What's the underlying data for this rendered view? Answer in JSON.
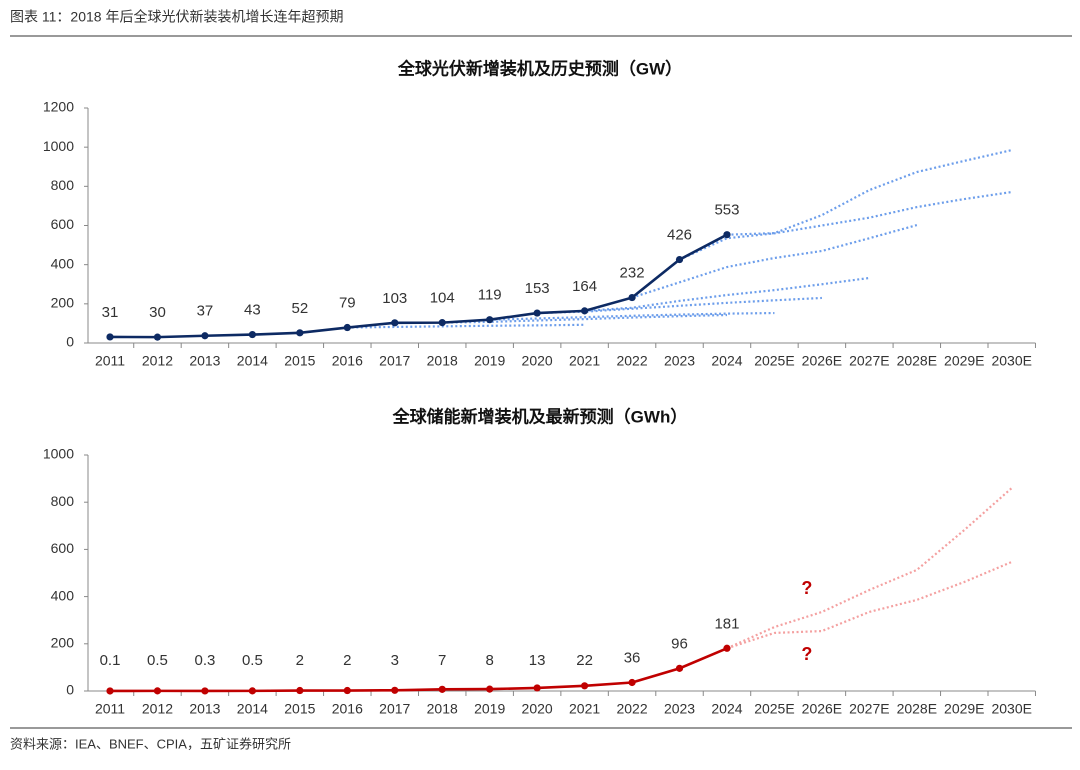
{
  "header": "图表 11：2018 年后全球光伏新装装机增长连年超预期",
  "source": "资料来源：IEA、BNEF、CPIA，五矿证券研究所",
  "chart_data": [
    {
      "type": "line",
      "title": "全球光伏新增装机及历史预测（GW）",
      "categories": [
        "2011",
        "2012",
        "2013",
        "2014",
        "2015",
        "2016",
        "2017",
        "2018",
        "2019",
        "2020",
        "2021",
        "2022",
        "2023",
        "2024",
        "2025E",
        "2026E",
        "2027E",
        "2028E",
        "2029E",
        "2030E"
      ],
      "ylim": [
        0,
        1200
      ],
      "yticks": [
        0,
        200,
        400,
        600,
        800,
        1000,
        1200
      ],
      "series": [
        {
          "color": "#6d9eeb",
          "style": "dotted",
          "values": [
            null,
            null,
            null,
            null,
            null,
            79,
            82,
            85,
            88,
            90,
            93,
            null,
            null,
            null,
            null,
            null,
            null,
            null,
            null,
            null
          ]
        },
        {
          "color": "#6d9eeb",
          "style": "dotted",
          "values": [
            null,
            null,
            null,
            null,
            null,
            null,
            null,
            104,
            108,
            115,
            122,
            130,
            137,
            143,
            null,
            null,
            null,
            null,
            null,
            null
          ]
        },
        {
          "color": "#6d9eeb",
          "style": "dotted",
          "values": [
            null,
            null,
            null,
            null,
            null,
            null,
            null,
            null,
            119,
            125,
            132,
            139,
            145,
            150,
            153,
            null,
            null,
            null,
            null,
            null
          ]
        },
        {
          "color": "#6d9eeb",
          "style": "dotted",
          "values": [
            null,
            null,
            null,
            null,
            null,
            null,
            null,
            null,
            null,
            153,
            160,
            175,
            190,
            205,
            218,
            230,
            null,
            null,
            null,
            null
          ]
        },
        {
          "color": "#6d9eeb",
          "style": "dotted",
          "values": [
            null,
            null,
            null,
            null,
            null,
            null,
            null,
            null,
            null,
            null,
            164,
            180,
            215,
            245,
            270,
            300,
            332,
            null,
            null,
            null
          ]
        },
        {
          "color": "#6d9eeb",
          "style": "dotted",
          "values": [
            null,
            null,
            null,
            null,
            null,
            null,
            null,
            null,
            null,
            null,
            null,
            232,
            310,
            388,
            434,
            470,
            535,
            602,
            null,
            null
          ]
        },
        {
          "color": "#6d9eeb",
          "style": "dotted",
          "values": [
            null,
            null,
            null,
            null,
            null,
            null,
            null,
            null,
            null,
            null,
            null,
            null,
            426,
            535,
            560,
            600,
            640,
            694,
            735,
            771
          ]
        },
        {
          "color": "#6d9eeb",
          "style": "dotted",
          "values": [
            null,
            null,
            null,
            null,
            null,
            null,
            null,
            null,
            null,
            null,
            null,
            null,
            null,
            553,
            561,
            653,
            781,
            873,
            930,
            985
          ]
        },
        {
          "color": "#0d2a63",
          "style": "solid",
          "data_labels": true,
          "values": [
            31,
            30,
            37,
            43,
            52,
            79,
            103,
            104,
            119,
            153,
            164,
            232,
            426,
            553,
            null,
            null,
            null,
            null,
            null,
            null
          ]
        }
      ]
    },
    {
      "type": "line",
      "title": "全球储能新增装机及最新预测（GWh）",
      "categories": [
        "2011",
        "2012",
        "2013",
        "2014",
        "2015",
        "2016",
        "2017",
        "2018",
        "2019",
        "2020",
        "2021",
        "2022",
        "2023",
        "2024",
        "2025E",
        "2026E",
        "2027E",
        "2028E",
        "2029E",
        "2030E"
      ],
      "ylim": [
        0,
        1000
      ],
      "yticks": [
        0,
        200,
        400,
        600,
        800,
        1000
      ],
      "annotations": [
        "?",
        "?"
      ],
      "series": [
        {
          "color": "#f4a0a0",
          "style": "dotted",
          "values": [
            null,
            null,
            null,
            null,
            null,
            null,
            null,
            null,
            null,
            null,
            null,
            null,
            null,
            181,
            271,
            335,
            428,
            513,
            682,
            860
          ]
        },
        {
          "color": "#f4a0a0",
          "style": "dotted",
          "values": [
            null,
            null,
            null,
            null,
            null,
            null,
            null,
            null,
            null,
            null,
            null,
            null,
            null,
            181,
            246,
            254,
            335,
            386,
            462,
            547
          ]
        },
        {
          "color": "#c00000",
          "style": "solid",
          "data_labels": true,
          "values": [
            0.1,
            0.5,
            0.3,
            0.5,
            2,
            2,
            3,
            7,
            8,
            13,
            22,
            36,
            96,
            181,
            null,
            null,
            null,
            null,
            null,
            null
          ]
        }
      ]
    }
  ]
}
